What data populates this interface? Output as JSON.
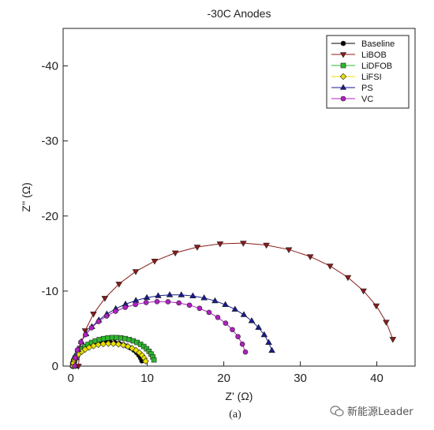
{
  "watermark": {
    "text": "新能源Leader",
    "icon": "wechat-icon"
  },
  "chart_data": {
    "type": "scatter",
    "title": "-30C Anodes",
    "subtitle": "(a)",
    "xlabel": "Z' (Ω)",
    "ylabel": "Z'' (Ω)",
    "xlim": [
      -1,
      45
    ],
    "ylim": [
      0,
      -45
    ],
    "x_ticks": [
      0,
      10,
      20,
      30,
      40
    ],
    "x_tick_labels": [
      "0",
      "10",
      "20",
      "30",
      "40"
    ],
    "y_ticks": [
      0,
      -10,
      -20,
      -30,
      -40
    ],
    "y_tick_labels": [
      "0",
      "-10",
      "-20",
      "-30",
      "-40"
    ],
    "grid": false,
    "legend_position": "top-right",
    "series": [
      {
        "name": "Baseline",
        "color": "#000000",
        "marker": "circle",
        "center": 4.8,
        "radius": 4.6,
        "peak": 3.2,
        "points": 24
      },
      {
        "name": "LiBOB",
        "color": "#8b1a1a",
        "marker": "triangle-down",
        "center": 21.8,
        "radius": 20.8,
        "peak": 16.4,
        "points": 21
      },
      {
        "name": "LiDFOB",
        "color": "#2db82d",
        "marker": "square",
        "center": 5.7,
        "radius": 5.3,
        "peak": 3.8,
        "points": 28
      },
      {
        "name": "LiFSI",
        "color": "#e8e000",
        "marker": "diamond",
        "center": 5.1,
        "radius": 4.8,
        "peak": 3.0,
        "points": 22
      },
      {
        "name": "PS",
        "color": "#1a1a8c",
        "marker": "triangle-up",
        "center": 13.6,
        "radius": 13.0,
        "peak": 9.5,
        "points": 26
      },
      {
        "name": "VC",
        "color": "#b020c0",
        "marker": "circle",
        "center": 11.8,
        "radius": 11.3,
        "peak": 8.6,
        "points": 24
      }
    ]
  }
}
